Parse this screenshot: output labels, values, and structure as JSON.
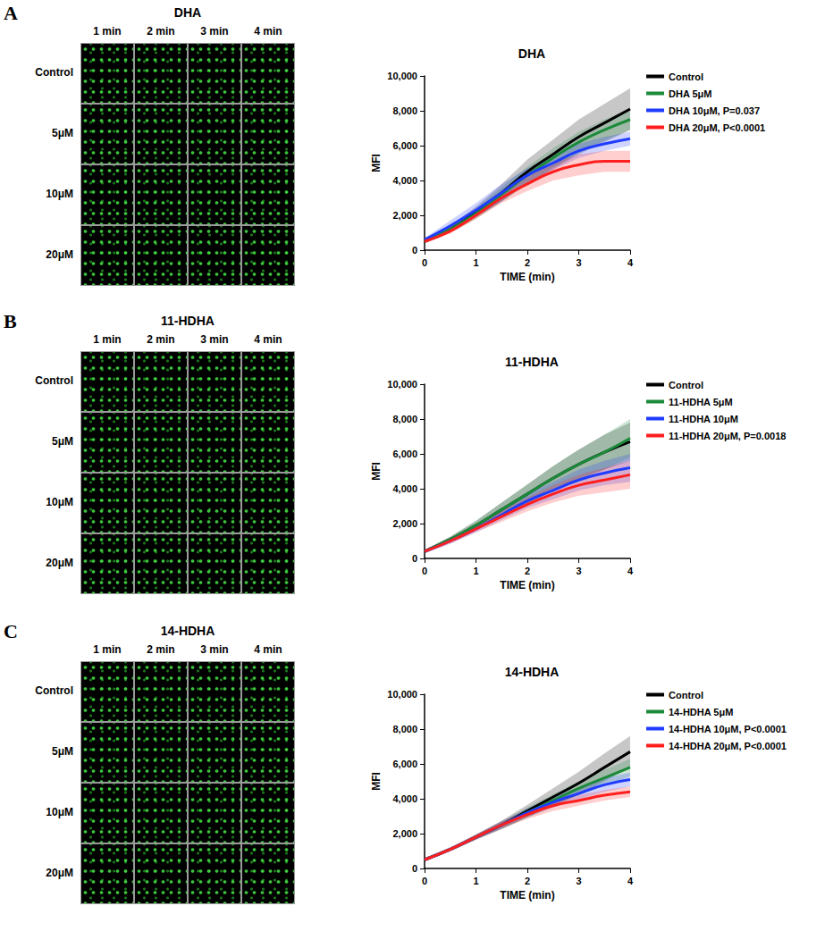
{
  "panels": [
    {
      "letter": "A",
      "title": "DHA",
      "columns": [
        "1 min",
        "2 min",
        "3 min",
        "4 min"
      ],
      "rows": [
        "Control",
        "5μM",
        "10μM",
        "20μM"
      ]
    },
    {
      "letter": "B",
      "title": "11-HDHA",
      "columns": [
        "1 min",
        "2 min",
        "3 min",
        "4 min"
      ],
      "rows": [
        "Control",
        "5μM",
        "10μM",
        "20μM"
      ]
    },
    {
      "letter": "C",
      "title": "14-HDHA",
      "columns": [
        "1 min",
        "2 min",
        "3 min",
        "4 min"
      ],
      "rows": [
        "Control",
        "5μM",
        "10μM",
        "20μM"
      ]
    }
  ],
  "chart_data": [
    {
      "type": "line",
      "title": "DHA",
      "x_label": "TIME (min)",
      "y_label": "MFI",
      "x": [
        0,
        0.5,
        1,
        1.5,
        2,
        2.5,
        3,
        3.5,
        4
      ],
      "xlim": [
        0,
        4
      ],
      "xticks": [
        0,
        1,
        2,
        3,
        4
      ],
      "ylim": [
        0,
        10000
      ],
      "yticks": [
        0,
        2000,
        4000,
        6000,
        8000,
        10000
      ],
      "grid": false,
      "legend": "right",
      "series": [
        {
          "name": "Control",
          "color": "#000000",
          "values": [
            500,
            1200,
            2200,
            3300,
            4500,
            5500,
            6500,
            7300,
            8100
          ],
          "sd": [
            100,
            200,
            300,
            500,
            700,
            850,
            1000,
            1100,
            1200
          ]
        },
        {
          "name": "DHA 5μM",
          "color": "#1b8a3a",
          "values": [
            500,
            1200,
            2100,
            3200,
            4300,
            5300,
            6200,
            6900,
            7500
          ],
          "sd": [
            100,
            200,
            300,
            400,
            500,
            550,
            600,
            600,
            600
          ]
        },
        {
          "name": "DHA 10μM, P=0.037",
          "color": "#1f3cff",
          "values": [
            600,
            1400,
            2300,
            3300,
            4300,
            5000,
            5700,
            6100,
            6400
          ],
          "sd": [
            100,
            300,
            400,
            500,
            400,
            400,
            400,
            400,
            400
          ]
        },
        {
          "name": "DHA 20μM, P<0.0001",
          "color": "#ff1f1f",
          "values": [
            500,
            1100,
            2000,
            3000,
            3800,
            4500,
            4900,
            5100,
            5100
          ],
          "sd": [
            100,
            150,
            200,
            300,
            400,
            500,
            600,
            600,
            600
          ]
        }
      ]
    },
    {
      "type": "line",
      "title": "11-HDHA",
      "x_label": "TIME (min)",
      "y_label": "MFI",
      "x": [
        0,
        0.5,
        1,
        1.5,
        2,
        2.5,
        3,
        3.5,
        4
      ],
      "xlim": [
        0,
        4
      ],
      "xticks": [
        0,
        1,
        2,
        3,
        4
      ],
      "ylim": [
        0,
        10000
      ],
      "yticks": [
        0,
        2000,
        4000,
        6000,
        8000,
        10000
      ],
      "grid": false,
      "legend": "right",
      "series": [
        {
          "name": "Control",
          "color": "#000000",
          "values": [
            400,
            1100,
            1900,
            2800,
            3700,
            4600,
            5400,
            6100,
            6700
          ],
          "sd": [
            100,
            150,
            250,
            400,
            550,
            700,
            850,
            1000,
            1100
          ]
        },
        {
          "name": "11-HDHA 5μM",
          "color": "#1b8a3a",
          "values": [
            400,
            1100,
            1900,
            2800,
            3700,
            4600,
            5400,
            6100,
            6900
          ],
          "sd": [
            100,
            150,
            250,
            400,
            550,
            700,
            850,
            1000,
            1100
          ]
        },
        {
          "name": "11-HDHA 10μM",
          "color": "#1f3cff",
          "values": [
            400,
            1000,
            1700,
            2500,
            3300,
            3900,
            4500,
            4900,
            5200
          ],
          "sd": [
            100,
            150,
            200,
            300,
            400,
            500,
            600,
            700,
            800
          ]
        },
        {
          "name": "11-HDHA 20μM, P=0.0018",
          "color": "#ff1f1f",
          "values": [
            400,
            1000,
            1700,
            2400,
            3100,
            3700,
            4200,
            4500,
            4800
          ],
          "sd": [
            100,
            150,
            200,
            300,
            400,
            500,
            600,
            700,
            800
          ]
        }
      ]
    },
    {
      "type": "line",
      "title": "14-HDHA",
      "x_label": "TIME (min)",
      "y_label": "MFI",
      "x": [
        0,
        0.5,
        1,
        1.5,
        2,
        2.5,
        3,
        3.5,
        4
      ],
      "xlim": [
        0,
        4
      ],
      "xticks": [
        0,
        1,
        2,
        3,
        4
      ],
      "ylim": [
        0,
        10000
      ],
      "yticks": [
        0,
        2000,
        4000,
        6000,
        8000,
        10000
      ],
      "grid": false,
      "legend": "right",
      "series": [
        {
          "name": "Control",
          "color": "#000000",
          "values": [
            500,
            1100,
            1800,
            2500,
            3300,
            4100,
            4900,
            5800,
            6700
          ],
          "sd": [
            100,
            100,
            150,
            250,
            350,
            500,
            650,
            800,
            900
          ]
        },
        {
          "name": "14-HDHA 5μM",
          "color": "#1b8a3a",
          "values": [
            500,
            1100,
            1800,
            2500,
            3200,
            3900,
            4600,
            5200,
            5800
          ],
          "sd": [
            100,
            100,
            150,
            200,
            300,
            350,
            400,
            450,
            500
          ]
        },
        {
          "name": "14-HDHA 10μM, P<0.0001",
          "color": "#1f3cff",
          "values": [
            500,
            1100,
            1800,
            2500,
            3200,
            3800,
            4300,
            4800,
            5100
          ],
          "sd": [
            100,
            100,
            150,
            200,
            250,
            300,
            350,
            400,
            400
          ]
        },
        {
          "name": "14-HDHA 20μM, P<0.0001",
          "color": "#ff1f1f",
          "values": [
            500,
            1100,
            1800,
            2500,
            3100,
            3600,
            3900,
            4200,
            4400
          ],
          "sd": [
            100,
            100,
            150,
            200,
            250,
            300,
            300,
            300,
            300
          ]
        }
      ]
    }
  ]
}
